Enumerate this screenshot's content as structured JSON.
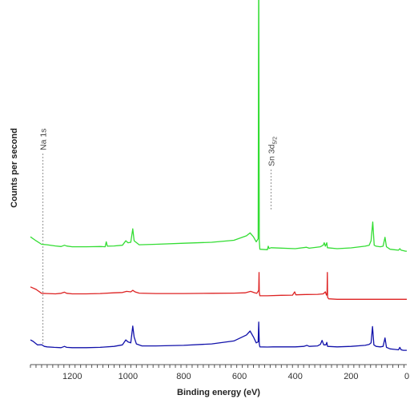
{
  "chart_data": {
    "type": "line",
    "title": "",
    "xlabel": "Binding energy (eV)",
    "ylabel": "Counts per second",
    "xlim": [
      1350,
      0
    ],
    "x_reversed": true,
    "x_ticks": [
      "1200",
      "1000",
      "800",
      "600",
      "400",
      "200",
      "0"
    ],
    "grid": false,
    "legend": "none",
    "annotations": [
      {
        "label": "Na 1s",
        "x": 1305
      },
      {
        "label": "Sn 3d",
        "sub": "5/2",
        "x": 487
      }
    ],
    "series": [
      {
        "color": "#33dd33",
        "offset": 0.5,
        "points": [
          [
            1350,
            0.66
          ],
          [
            1330,
            0.62
          ],
          [
            1310,
            0.585
          ],
          [
            1290,
            0.58
          ],
          [
            1260,
            0.568
          ],
          [
            1240,
            0.562
          ],
          [
            1228,
            0.575
          ],
          [
            1220,
            0.567
          ],
          [
            1200,
            0.56
          ],
          [
            1150,
            0.56
          ],
          [
            1100,
            0.562
          ],
          [
            1082,
            0.56
          ],
          [
            1078,
            0.61
          ],
          [
            1074,
            0.565
          ],
          [
            1050,
            0.568
          ],
          [
            1020,
            0.575
          ],
          [
            1008,
            0.62
          ],
          [
            1000,
            0.6
          ],
          [
            990,
            0.605
          ],
          [
            983,
            0.74
          ],
          [
            978,
            0.62
          ],
          [
            960,
            0.58
          ],
          [
            900,
            0.585
          ],
          [
            800,
            0.595
          ],
          [
            700,
            0.605
          ],
          [
            620,
            0.625
          ],
          [
            575,
            0.67
          ],
          [
            562,
            0.7
          ],
          [
            550,
            0.66
          ],
          [
            540,
            0.61
          ],
          [
            533,
            0.64
          ],
          [
            531,
            3.5
          ],
          [
            529,
            0.62
          ],
          [
            527,
            0.535
          ],
          [
            500,
            0.53
          ],
          [
            497,
            0.565
          ],
          [
            494,
            0.542
          ],
          [
            487,
            0.55
          ],
          [
            400,
            0.54
          ],
          [
            360,
            0.555
          ],
          [
            350,
            0.545
          ],
          [
            310,
            0.56
          ],
          [
            300,
            0.575
          ],
          [
            296,
            0.6
          ],
          [
            292,
            0.565
          ],
          [
            287,
            0.6
          ],
          [
            285,
            0.55
          ],
          [
            250,
            0.54
          ],
          [
            200,
            0.548
          ],
          [
            150,
            0.565
          ],
          [
            135,
            0.575
          ],
          [
            128,
            0.62
          ],
          [
            122,
            0.81
          ],
          [
            117,
            0.575
          ],
          [
            110,
            0.565
          ],
          [
            95,
            0.56
          ],
          [
            85,
            0.565
          ],
          [
            78,
            0.655
          ],
          [
            73,
            0.56
          ],
          [
            60,
            0.535
          ],
          [
            45,
            0.53
          ],
          [
            30,
            0.525
          ],
          [
            25,
            0.54
          ],
          [
            20,
            0.525
          ],
          [
            12,
            0.52
          ],
          [
            5,
            0.515
          ],
          [
            0,
            0.515
          ]
        ]
      },
      {
        "color": "#dd2222",
        "offset": 0.25,
        "points": [
          [
            1350,
            0.405
          ],
          [
            1330,
            0.38
          ],
          [
            1310,
            0.34
          ],
          [
            1290,
            0.338
          ],
          [
            1260,
            0.335
          ],
          [
            1240,
            0.34
          ],
          [
            1228,
            0.352
          ],
          [
            1220,
            0.34
          ],
          [
            1200,
            0.335
          ],
          [
            1150,
            0.335
          ],
          [
            1100,
            0.338
          ],
          [
            1050,
            0.345
          ],
          [
            1020,
            0.348
          ],
          [
            1005,
            0.36
          ],
          [
            990,
            0.355
          ],
          [
            983,
            0.37
          ],
          [
            975,
            0.355
          ],
          [
            960,
            0.342
          ],
          [
            900,
            0.338
          ],
          [
            800,
            0.338
          ],
          [
            700,
            0.34
          ],
          [
            620,
            0.342
          ],
          [
            580,
            0.345
          ],
          [
            560,
            0.36
          ],
          [
            545,
            0.345
          ],
          [
            538,
            0.34
          ],
          [
            531,
            0.37
          ],
          [
            530,
            0.55
          ],
          [
            529,
            0.35
          ],
          [
            527,
            0.315
          ],
          [
            500,
            0.315
          ],
          [
            450,
            0.32
          ],
          [
            410,
            0.322
          ],
          [
            402,
            0.355
          ],
          [
            398,
            0.325
          ],
          [
            360,
            0.328
          ],
          [
            320,
            0.33
          ],
          [
            300,
            0.335
          ],
          [
            292,
            0.355
          ],
          [
            288,
            0.322
          ],
          [
            286,
            0.33
          ],
          [
            285,
            0.55
          ],
          [
            284,
            0.3
          ],
          [
            280,
            0.285
          ],
          [
            250,
            0.28
          ],
          [
            200,
            0.28
          ],
          [
            150,
            0.28
          ],
          [
            100,
            0.28
          ],
          [
            50,
            0.28
          ],
          [
            0,
            0.28
          ]
        ]
      },
      {
        "color": "#1111aa",
        "offset": 0.0,
        "points": [
          [
            1350,
            0.12
          ],
          [
            1340,
            0.105
          ],
          [
            1325,
            0.07
          ],
          [
            1310,
            0.072
          ],
          [
            1300,
            0.055
          ],
          [
            1290,
            0.05
          ],
          [
            1265,
            0.045
          ],
          [
            1240,
            0.042
          ],
          [
            1228,
            0.055
          ],
          [
            1220,
            0.045
          ],
          [
            1200,
            0.042
          ],
          [
            1150,
            0.042
          ],
          [
            1100,
            0.045
          ],
          [
            1050,
            0.055
          ],
          [
            1020,
            0.07
          ],
          [
            1008,
            0.12
          ],
          [
            1000,
            0.1
          ],
          [
            990,
            0.09
          ],
          [
            983,
            0.26
          ],
          [
            978,
            0.15
          ],
          [
            970,
            0.08
          ],
          [
            950,
            0.06
          ],
          [
            900,
            0.06
          ],
          [
            800,
            0.065
          ],
          [
            700,
            0.08
          ],
          [
            620,
            0.11
          ],
          [
            575,
            0.17
          ],
          [
            562,
            0.21
          ],
          [
            550,
            0.15
          ],
          [
            540,
            0.09
          ],
          [
            533,
            0.1
          ],
          [
            531,
            0.3
          ],
          [
            529,
            0.08
          ],
          [
            527,
            0.05
          ],
          [
            500,
            0.048
          ],
          [
            480,
            0.05
          ],
          [
            400,
            0.05
          ],
          [
            370,
            0.055
          ],
          [
            358,
            0.065
          ],
          [
            350,
            0.055
          ],
          [
            320,
            0.06
          ],
          [
            310,
            0.075
          ],
          [
            304,
            0.115
          ],
          [
            298,
            0.07
          ],
          [
            290,
            0.07
          ],
          [
            287,
            0.095
          ],
          [
            284,
            0.055
          ],
          [
            250,
            0.05
          ],
          [
            200,
            0.055
          ],
          [
            150,
            0.065
          ],
          [
            135,
            0.075
          ],
          [
            128,
            0.09
          ],
          [
            123,
            0.255
          ],
          [
            118,
            0.07
          ],
          [
            110,
            0.055
          ],
          [
            95,
            0.05
          ],
          [
            85,
            0.055
          ],
          [
            78,
            0.14
          ],
          [
            73,
            0.045
          ],
          [
            60,
            0.03
          ],
          [
            45,
            0.025
          ],
          [
            30,
            0.02
          ],
          [
            25,
            0.045
          ],
          [
            20,
            0.02
          ],
          [
            12,
            0.015
          ],
          [
            0,
            0.015
          ]
        ]
      }
    ]
  }
}
